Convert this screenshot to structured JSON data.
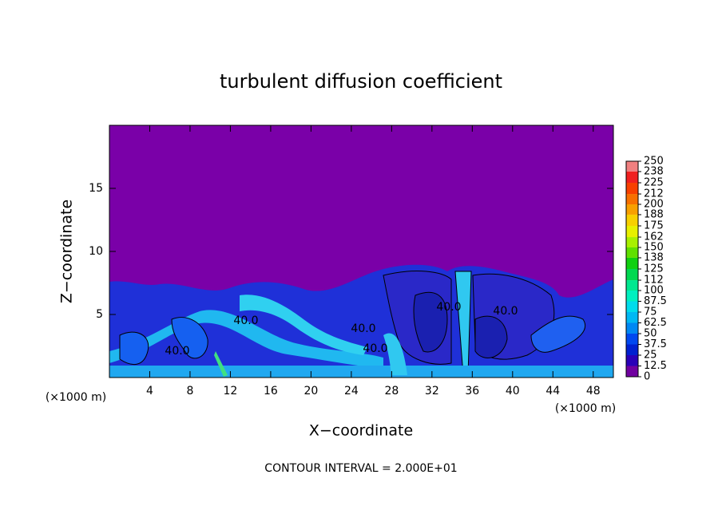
{
  "chart_data": {
    "type": "contour",
    "title": "turbulent diffusion coefficient",
    "x_label": "X−coordinate",
    "y_label": "Z−coordinate",
    "x_unit": "(×1000 m)",
    "y_unit": "(×1000 m)",
    "footer": "CONTOUR INTERVAL = 2.000E+01",
    "xlim": [
      0,
      50
    ],
    "xticks": [
      4,
      8,
      12,
      16,
      20,
      24,
      28,
      32,
      36,
      40,
      44,
      48
    ],
    "ylim": [
      0,
      20
    ],
    "yticks": [
      5,
      10,
      15
    ],
    "contour_labels": [
      "40.0",
      "40.0",
      "40.0",
      "40.0",
      "40.0",
      "40.0"
    ],
    "colorbar": {
      "ticks": [
        0,
        12.5,
        25,
        37.5,
        50,
        62.5,
        75,
        87.5,
        100,
        112,
        125,
        138,
        150,
        162,
        175,
        188,
        200,
        212,
        225,
        238,
        250
      ],
      "colors": [
        "#7000a0",
        "#2a00b8",
        "#0020d0",
        "#0048f0",
        "#0088f4",
        "#00b8f4",
        "#00dcec",
        "#00f0c0",
        "#00e890",
        "#00d850",
        "#10d010",
        "#60e000",
        "#a8f000",
        "#e8f000",
        "#f8d000",
        "#f8a000",
        "#f87000",
        "#f84000",
        "#f02020",
        "#f08080"
      ]
    }
  }
}
